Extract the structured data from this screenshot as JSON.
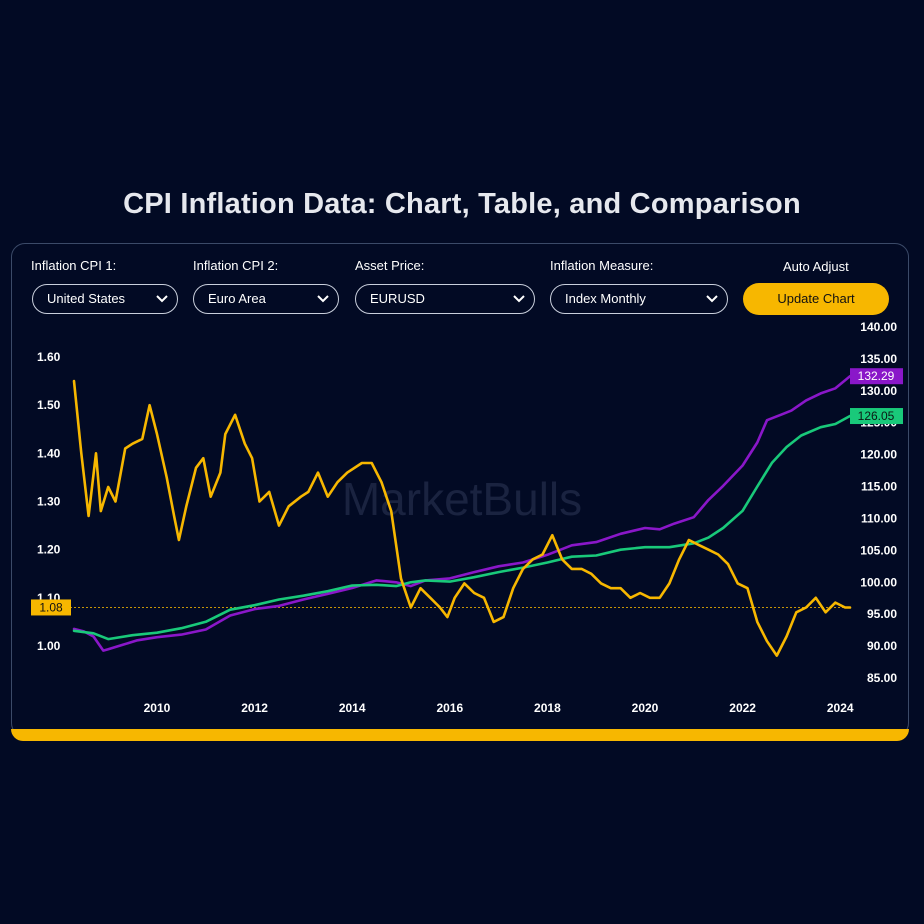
{
  "page": {
    "title": "CPI Inflation Data: Chart, Table, and Comparison"
  },
  "controls": {
    "cpi1": {
      "label": "Inflation CPI 1:",
      "value": "United States"
    },
    "cpi2": {
      "label": "Inflation CPI 2:",
      "value": "Euro Area"
    },
    "asset": {
      "label": "Asset Price:",
      "value": "EURUSD"
    },
    "measure": {
      "label": "Inflation Measure:",
      "value": "Index Monthly"
    },
    "auto_adjust_label": "Auto Adjust",
    "update_button": "Update Chart"
  },
  "watermark": "MarketBulls",
  "colors": {
    "background": "#020a24",
    "accent": "#f7b700",
    "us_cpi": "#8a17c9",
    "euro_cpi": "#19c97a",
    "eurusd": "#f7b700"
  },
  "chart_data": {
    "type": "line",
    "x_range": [
      2008.3,
      2024.2
    ],
    "x_ticks": [
      "2010",
      "2012",
      "2014",
      "2016",
      "2018",
      "2020",
      "2022",
      "2024"
    ],
    "left_axis": {
      "ylim": [
        0.93,
        1.66
      ],
      "ticks": [
        "1.00",
        "1.10",
        "1.20",
        "1.30",
        "1.40",
        "1.50",
        "1.60"
      ]
    },
    "right_axis": {
      "ylim": [
        84,
        141
      ],
      "ticks": [
        "85.00",
        "90.00",
        "95.00",
        "100.00",
        "105.00",
        "110.00",
        "115.00",
        "120.00",
        "125.00",
        "130.00",
        "135.00",
        "140.00"
      ]
    },
    "last_value_labels": {
      "eurusd": "1.08",
      "us_cpi": "132.29",
      "euro_cpi": "126.05"
    },
    "series": [
      {
        "key": "us_cpi",
        "axis": "right",
        "x": [
          2008.3,
          2008.5,
          2008.7,
          2008.9,
          2009.0,
          2009.3,
          2009.6,
          2010.0,
          2010.5,
          2011.0,
          2011.5,
          2012.0,
          2012.5,
          2013.0,
          2013.5,
          2014.0,
          2014.5,
          2014.9,
          2015.2,
          2015.5,
          2016.0,
          2016.5,
          2017.0,
          2017.5,
          2018.0,
          2018.5,
          2019.0,
          2019.5,
          2020.0,
          2020.3,
          2020.6,
          2021.0,
          2021.3,
          2021.6,
          2022.0,
          2022.3,
          2022.5,
          2022.8,
          2023.0,
          2023.3,
          2023.6,
          2023.9,
          2024.2
        ],
        "values": [
          92.7,
          92.3,
          91.5,
          89.3,
          89.5,
          90.2,
          90.9,
          91.4,
          91.8,
          92.6,
          94.8,
          95.8,
          96.3,
          97.3,
          98.2,
          99.1,
          100.3,
          100.0,
          99.4,
          100.3,
          100.6,
          101.6,
          102.5,
          103.1,
          104.3,
          105.8,
          106.3,
          107.6,
          108.5,
          108.3,
          109.2,
          110.2,
          112.9,
          115.1,
          118.3,
          121.9,
          125.4,
          126.3,
          126.9,
          128.5,
          129.6,
          130.4,
          132.29
        ]
      },
      {
        "key": "euro_cpi",
        "axis": "right",
        "x": [
          2008.3,
          2008.7,
          2009.0,
          2009.5,
          2010.0,
          2010.5,
          2011.0,
          2011.5,
          2012.0,
          2012.5,
          2013.0,
          2013.5,
          2014.0,
          2014.5,
          2014.9,
          2015.2,
          2015.5,
          2016.0,
          2016.5,
          2017.0,
          2017.5,
          2018.0,
          2018.5,
          2019.0,
          2019.5,
          2020.0,
          2020.5,
          2021.0,
          2021.3,
          2021.6,
          2022.0,
          2022.3,
          2022.6,
          2022.9,
          2023.2,
          2023.6,
          2023.9,
          2024.2
        ],
        "values": [
          92.4,
          92.0,
          91.1,
          91.7,
          92.1,
          92.8,
          93.8,
          95.7,
          96.4,
          97.3,
          97.9,
          98.6,
          99.5,
          99.6,
          99.4,
          100.0,
          100.3,
          100.1,
          100.8,
          101.6,
          102.3,
          103.1,
          104.0,
          104.2,
          105.1,
          105.5,
          105.5,
          106.1,
          107.0,
          108.5,
          111.2,
          115.0,
          118.7,
          121.2,
          123.0,
          124.3,
          124.8,
          126.05
        ]
      },
      {
        "key": "eurusd",
        "axis": "left",
        "x": [
          2008.3,
          2008.45,
          2008.6,
          2008.75,
          2008.85,
          2009.0,
          2009.15,
          2009.35,
          2009.5,
          2009.7,
          2009.85,
          2010.0,
          2010.2,
          2010.35,
          2010.45,
          2010.6,
          2010.8,
          2010.95,
          2011.1,
          2011.3,
          2011.4,
          2011.6,
          2011.8,
          2011.95,
          2012.1,
          2012.3,
          2012.5,
          2012.7,
          2012.95,
          2013.1,
          2013.3,
          2013.5,
          2013.7,
          2013.9,
          2014.2,
          2014.4,
          2014.6,
          2014.8,
          2015.0,
          2015.2,
          2015.4,
          2015.6,
          2015.8,
          2015.95,
          2016.1,
          2016.3,
          2016.5,
          2016.7,
          2016.9,
          2017.1,
          2017.3,
          2017.5,
          2017.7,
          2017.9,
          2018.1,
          2018.3,
          2018.5,
          2018.7,
          2018.9,
          2019.1,
          2019.3,
          2019.5,
          2019.7,
          2019.9,
          2020.1,
          2020.3,
          2020.5,
          2020.7,
          2020.9,
          2021.1,
          2021.3,
          2021.5,
          2021.7,
          2021.9,
          2022.1,
          2022.3,
          2022.5,
          2022.7,
          2022.9,
          2023.1,
          2023.3,
          2023.5,
          2023.7,
          2023.9,
          2024.1,
          2024.2
        ],
        "values": [
          1.55,
          1.4,
          1.27,
          1.4,
          1.28,
          1.33,
          1.3,
          1.41,
          1.42,
          1.43,
          1.5,
          1.44,
          1.35,
          1.27,
          1.22,
          1.29,
          1.37,
          1.39,
          1.31,
          1.36,
          1.44,
          1.48,
          1.42,
          1.39,
          1.3,
          1.32,
          1.25,
          1.29,
          1.31,
          1.32,
          1.36,
          1.31,
          1.34,
          1.36,
          1.38,
          1.38,
          1.34,
          1.28,
          1.14,
          1.08,
          1.12,
          1.1,
          1.08,
          1.06,
          1.1,
          1.13,
          1.11,
          1.1,
          1.05,
          1.06,
          1.12,
          1.16,
          1.18,
          1.19,
          1.23,
          1.18,
          1.16,
          1.16,
          1.15,
          1.13,
          1.12,
          1.12,
          1.1,
          1.11,
          1.1,
          1.1,
          1.13,
          1.18,
          1.22,
          1.21,
          1.2,
          1.19,
          1.17,
          1.13,
          1.12,
          1.05,
          1.01,
          0.98,
          1.02,
          1.07,
          1.08,
          1.1,
          1.07,
          1.09,
          1.08,
          1.08
        ]
      }
    ]
  }
}
